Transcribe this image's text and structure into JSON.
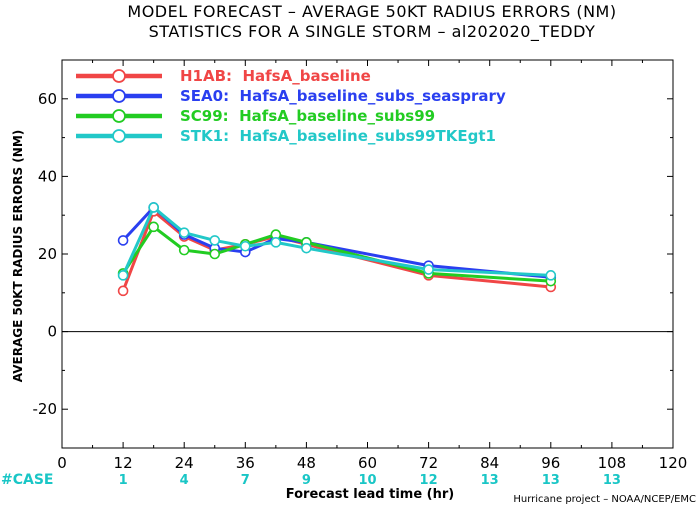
{
  "header": {
    "line1": "MODEL FORECAST – AVERAGE 50KT RADIUS ERRORS (NM)",
    "line2": "STATISTICS FOR A SINGLE STORM – al202020_TEDDY"
  },
  "footer": {
    "case_label": "#CASE",
    "credit": "Hurricane project – NOAA/NCEP/EMC"
  },
  "chart_data": {
    "type": "line",
    "title": "MODEL FORECAST – AVERAGE 50KT RADIUS ERRORS (NM)",
    "subtitle": "STATISTICS FOR A SINGLE STORM – al202020_TEDDY",
    "xlabel": "Forecast lead time (hr)",
    "ylabel": "AVERAGE 50KT RADIUS ERRORS (NM)",
    "xlim": [
      0,
      120
    ],
    "ylim": [
      -30,
      70
    ],
    "x_ticks": [
      0,
      12,
      24,
      36,
      48,
      60,
      72,
      84,
      96,
      108,
      120
    ],
    "y_ticks": [
      -20,
      0,
      20,
      40,
      60
    ],
    "zero_line": true,
    "grid": false,
    "legend_position": "top-left",
    "x": [
      12,
      18,
      24,
      30,
      36,
      42,
      48,
      72,
      96
    ],
    "series": [
      {
        "name": "H1AB:  HafsA_baseline",
        "color": "#f04646",
        "values": [
          10.5,
          31,
          24.5,
          21,
          22.5,
          24.5,
          22.5,
          14.5,
          11.5
        ]
      },
      {
        "name": "SEA0:  HafsA_baseline_subs_seasprary",
        "color": "#2a3ff0",
        "values": [
          23.5,
          32,
          25,
          21.5,
          20.5,
          24,
          23,
          17,
          14
        ]
      },
      {
        "name": "SC99:  HafsA_baseline_subs99",
        "color": "#22cc22",
        "values": [
          15,
          27,
          21,
          20,
          22.5,
          25,
          23,
          15,
          13
        ]
      },
      {
        "name": "STK1:  HafsA_baseline_subs99TKEgt1",
        "color": "#22c8c8",
        "values": [
          14.5,
          32,
          25.5,
          23.5,
          22,
          23,
          21.5,
          16,
          14.5
        ]
      }
    ],
    "case_counts": {
      "x": [
        12,
        24,
        36,
        48,
        60,
        72,
        84,
        96,
        108
      ],
      "values": [
        "1",
        "4",
        "7",
        "9",
        "10",
        "12",
        "13",
        "13",
        "13"
      ]
    }
  }
}
